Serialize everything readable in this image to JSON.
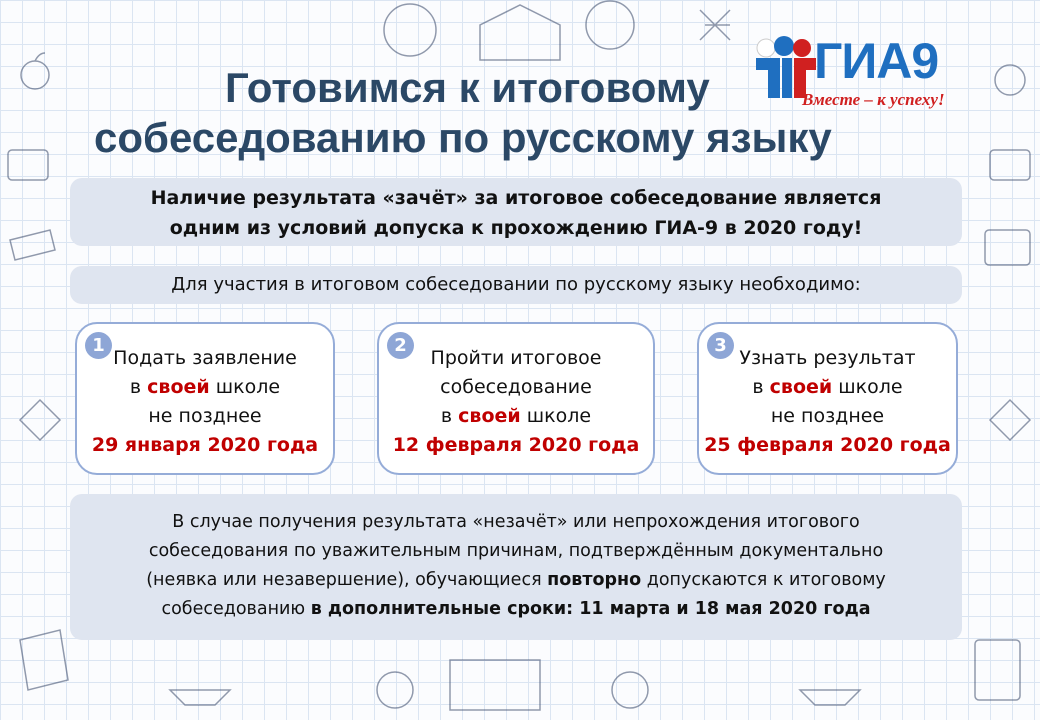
{
  "title": {
    "line1": "Готовимся к итоговому",
    "line2": "собеседованию по русскому языку"
  },
  "logo": {
    "text": "ГИА9",
    "slogan": "Вместе – к успеху!",
    "colors": {
      "blue": "#1f6fc0",
      "red": "#d02020"
    }
  },
  "notice": {
    "line1": "Наличие результата «зачёт» за итоговое собеседование является",
    "line2": "одним из условий допуска к прохождению ГИА-9 в 2020 году!"
  },
  "requirement": "Для участия в итоговом собеседовании по русскому языку необходимо:",
  "steps": [
    {
      "number": "1",
      "line1": "Подать заявление",
      "pre": "в ",
      "emph": "своей",
      "post": " школе",
      "line3": "не позднее",
      "date": "29 января 2020 года"
    },
    {
      "number": "2",
      "line1": "Пройти итоговое",
      "line1b": "собеседование",
      "pre": "в ",
      "emph": "своей",
      "post": " школе",
      "date": "12 февраля 2020 года"
    },
    {
      "number": "3",
      "line1": "Узнать результат",
      "pre": "в ",
      "emph": "своей",
      "post": " школе",
      "line3": "не позднее",
      "date": "25 февраля 2020 года"
    }
  ],
  "footer": {
    "line1": "В случае получения результата «незачёт» или непрохождения итогового",
    "line2": "собеседования по уважительным причинам, подтверждённым документально",
    "line3a": "(неявка или незавершение), обучающиеся ",
    "line3b": "повторно",
    "line3c": " допускаются к итоговому",
    "line4a": "собеседованию ",
    "line4b": "в дополнительные сроки",
    "line4c": ": 11 марта и 18 мая 2020 года"
  },
  "colors": {
    "title": "#2b4866",
    "accent_red": "#c00000",
    "box_fill": "#dfe5f0",
    "card_border": "#95acd8"
  }
}
